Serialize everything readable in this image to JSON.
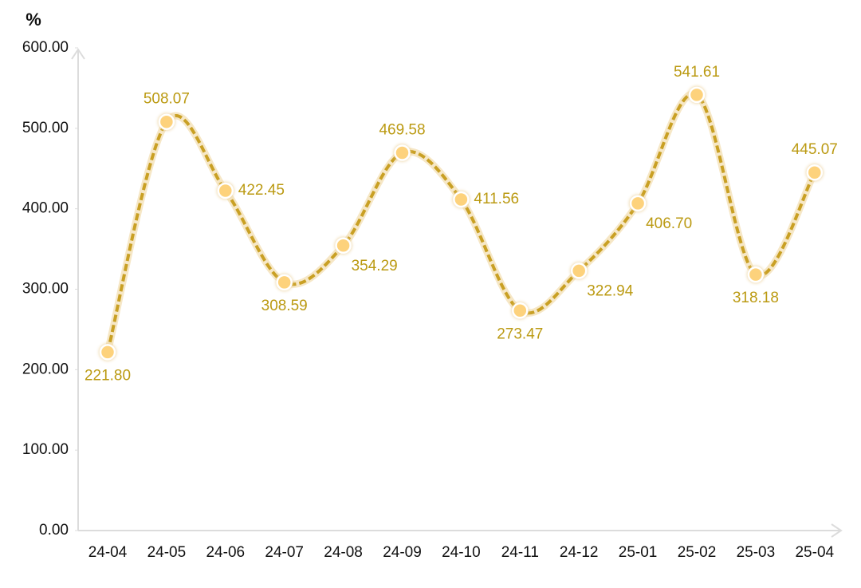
{
  "chart_data": {
    "type": "line",
    "y_label": "%",
    "categories": [
      "24-04",
      "24-05",
      "24-06",
      "24-07",
      "24-08",
      "24-09",
      "24-10",
      "24-11",
      "24-12",
      "25-01",
      "25-02",
      "25-03",
      "25-04"
    ],
    "values": [
      221.8,
      508.07,
      422.45,
      308.59,
      354.29,
      469.58,
      411.56,
      273.47,
      322.94,
      406.7,
      541.61,
      318.18,
      445.07
    ],
    "value_labels": [
      "221.80",
      "508.07",
      "422.45",
      "308.59",
      "354.29",
      "469.58",
      "411.56",
      "273.47",
      "322.94",
      "406.70",
      "541.61",
      "318.18",
      "445.07"
    ],
    "color": "#c9a024",
    "marker_color": "#fdd27c",
    "label_color": "#bb9a12",
    "ylim": [
      0,
      600
    ],
    "yticks": [
      {
        "value": 0,
        "label": "0.00"
      },
      {
        "value": 100,
        "label": "100.00"
      },
      {
        "value": 200,
        "label": "200.00"
      },
      {
        "value": 300,
        "label": "300.00"
      },
      {
        "value": 400,
        "label": "400.00"
      },
      {
        "value": 500,
        "label": "500.00"
      },
      {
        "value": 600,
        "label": "600.00"
      }
    ],
    "grid": false
  }
}
